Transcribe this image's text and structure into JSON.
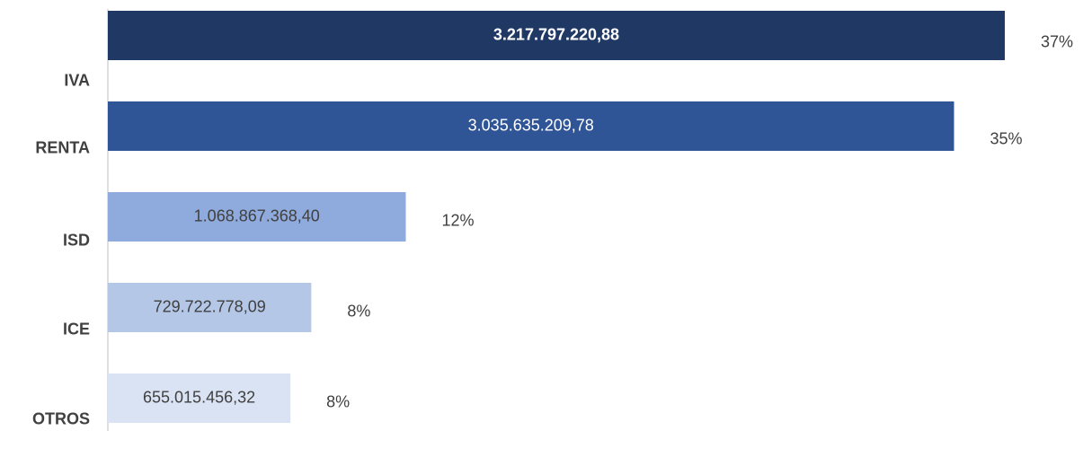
{
  "chart_data": {
    "type": "barh",
    "categories": [
      "IVA",
      "RENTA",
      "ISD",
      "ICE",
      "OTROS"
    ],
    "values": [
      3217797220.88,
      3035635209.78,
      1068867368.4,
      729722778.09,
      655015456.32
    ],
    "value_labels": [
      "3.217.797.220,88",
      "3.035.635.209,78",
      "1.068.867.368,40",
      "729.722.778,09",
      "655.015.456,32"
    ],
    "share_labels": [
      "37%",
      "35%",
      "12%",
      "8%",
      "8%"
    ],
    "colors": [
      "#203864",
      "#2f5597",
      "#8faadc",
      "#b4c7e7",
      "#dae3f3"
    ],
    "xlim": [
      0,
      3500000000
    ]
  }
}
